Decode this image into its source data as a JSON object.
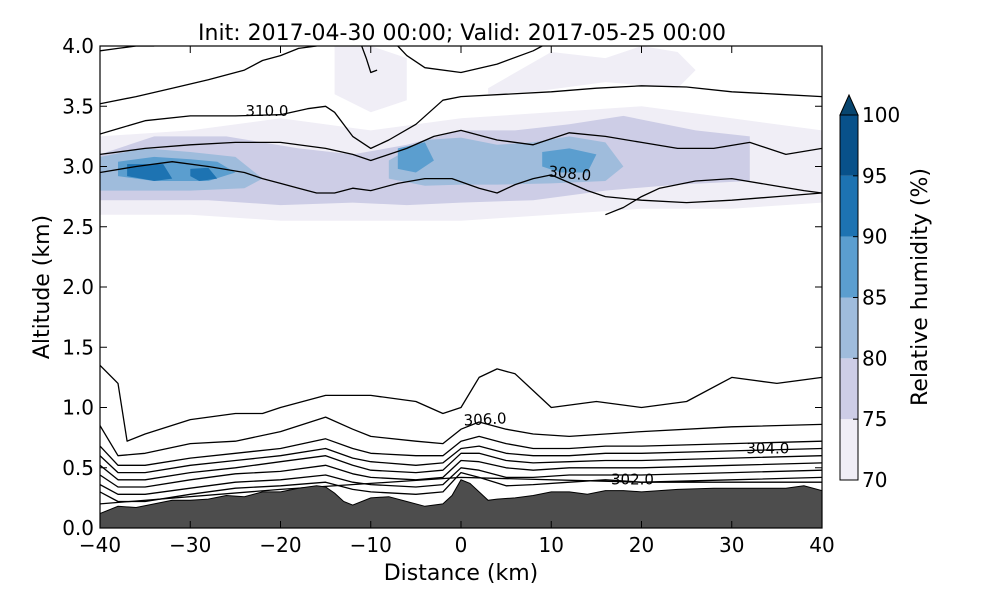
{
  "chart_data": {
    "type": "contour",
    "title": "Init: 2017-04-30 00:00; Valid: 2017-05-25 00:00",
    "xlabel": "Distance (km)",
    "ylabel": "Altitude (km)",
    "xlim": [
      -40,
      40
    ],
    "ylim": [
      0.0,
      4.0
    ],
    "xticks": [
      "−40",
      "−30",
      "−20",
      "−10",
      "0",
      "10",
      "20",
      "30",
      "40"
    ],
    "xtick_values": [
      -40,
      -30,
      -20,
      -10,
      0,
      10,
      20,
      30,
      40
    ],
    "yticks": [
      "0.0",
      "0.5",
      "1.0",
      "1.5",
      "2.0",
      "2.5",
      "3.0",
      "3.5",
      "4.0"
    ],
    "ytick_values": [
      0,
      0.5,
      1.0,
      1.5,
      2.0,
      2.5,
      3.0,
      3.5,
      4.0
    ],
    "colorbar": {
      "label": "Relative humidity (%)",
      "ticks": [
        "70",
        "75",
        "80",
        "85",
        "90",
        "95",
        "100"
      ],
      "levels": [
        70,
        75,
        80,
        85,
        90,
        95,
        100
      ],
      "colors": [
        "#f0eef6",
        "#cdcde6",
        "#9fbcdc",
        "#5b9ecf",
        "#1d73b2",
        "#08518a"
      ],
      "extend_color": "#08456f"
    },
    "terrain": {
      "color": "#4d4d4d",
      "x": [
        -40,
        -38,
        -36,
        -34,
        -32,
        -30,
        -28,
        -26,
        -24,
        -22,
        -20,
        -18,
        -16,
        -15,
        -14,
        -13,
        -12,
        -10,
        -8,
        -6,
        -4,
        -2,
        -1,
        0,
        1,
        2,
        3,
        4,
        6,
        8,
        10,
        12,
        14,
        16,
        18,
        20,
        24,
        28,
        32,
        36,
        38,
        40
      ],
      "y": [
        0.12,
        0.18,
        0.17,
        0.2,
        0.23,
        0.23,
        0.24,
        0.27,
        0.26,
        0.3,
        0.3,
        0.33,
        0.35,
        0.34,
        0.29,
        0.22,
        0.19,
        0.25,
        0.26,
        0.22,
        0.18,
        0.2,
        0.27,
        0.4,
        0.37,
        0.3,
        0.23,
        0.24,
        0.25,
        0.27,
        0.3,
        0.3,
        0.28,
        0.31,
        0.31,
        0.3,
        0.32,
        0.33,
        0.33,
        0.33,
        0.35,
        0.31
      ]
    },
    "rh_regions": [
      {
        "level": 70,
        "x": [
          -40,
          -30,
          -20,
          -10,
          0,
          10,
          20,
          30,
          40,
          40,
          30,
          20,
          10,
          0,
          -10,
          -20,
          -30,
          -40
        ],
        "y": [
          3.25,
          3.3,
          3.4,
          3.3,
          3.4,
          3.45,
          3.5,
          3.4,
          3.3,
          2.7,
          2.65,
          2.65,
          2.6,
          2.55,
          2.55,
          2.55,
          2.6,
          2.6
        ]
      },
      {
        "level": 70,
        "x": [
          -14,
          -10,
          -6,
          -6,
          -10,
          -14
        ],
        "y": [
          4.0,
          4.0,
          3.9,
          3.55,
          3.45,
          3.6
        ]
      },
      {
        "level": 70,
        "x": [
          3,
          10,
          16,
          20,
          24,
          26,
          24,
          16,
          8,
          3
        ],
        "y": [
          3.65,
          3.95,
          3.9,
          4.0,
          3.95,
          3.8,
          3.65,
          3.7,
          3.62,
          3.6
        ]
      },
      {
        "level": 75,
        "x": [
          -40,
          -34,
          -26,
          -18,
          -12,
          -6,
          0,
          6,
          12,
          18,
          26,
          32,
          32,
          24,
          16,
          8,
          0,
          -6,
          -12,
          -20,
          -28,
          -36,
          -40
        ],
        "y": [
          3.1,
          3.25,
          3.25,
          3.15,
          3.1,
          3.18,
          3.3,
          3.3,
          3.35,
          3.42,
          3.3,
          3.25,
          2.88,
          2.85,
          2.8,
          2.72,
          2.7,
          2.68,
          2.7,
          2.68,
          2.72,
          2.72,
          2.72
        ]
      },
      {
        "level": 80,
        "x": [
          -40,
          -35,
          -30,
          -25,
          -22,
          -24,
          -30,
          -36,
          -40
        ],
        "y": [
          3.08,
          3.15,
          3.12,
          3.08,
          2.9,
          2.82,
          2.8,
          2.8,
          2.8
        ]
      },
      {
        "level": 80,
        "x": [
          -8,
          -4,
          0,
          4,
          8,
          12,
          16,
          18,
          16,
          10,
          4,
          0,
          -4,
          -8
        ],
        "y": [
          3.05,
          3.22,
          3.24,
          3.18,
          3.2,
          3.25,
          3.2,
          3.0,
          2.88,
          2.86,
          2.85,
          2.85,
          2.84,
          2.9
        ]
      },
      {
        "level": 85,
        "x": [
          -38,
          -34,
          -30,
          -27,
          -25,
          -28,
          -34,
          -38
        ],
        "y": [
          3.04,
          3.08,
          3.06,
          3.04,
          2.95,
          2.88,
          2.88,
          2.92
        ]
      },
      {
        "level": 85,
        "x": [
          -7,
          -4,
          -3,
          -5,
          -7
        ],
        "y": [
          3.15,
          3.2,
          3.05,
          2.95,
          2.98
        ]
      },
      {
        "level": 85,
        "x": [
          9,
          12,
          15,
          14,
          11,
          9
        ],
        "y": [
          3.12,
          3.15,
          3.1,
          2.95,
          2.95,
          3.0
        ]
      },
      {
        "level": 90,
        "x": [
          -37,
          -33,
          -32,
          -34,
          -37
        ],
        "y": [
          3.02,
          3.02,
          2.9,
          2.88,
          2.92
        ]
      },
      {
        "level": 90,
        "x": [
          -30,
          -28,
          -27,
          -29,
          -30
        ],
        "y": [
          2.98,
          2.99,
          2.9,
          2.88,
          2.92
        ]
      }
    ],
    "theta_labels": [
      {
        "text": "310.0",
        "x": -21.5,
        "y": 3.42,
        "rotation": 0
      },
      {
        "text": "308.0",
        "x": 12,
        "y": 2.9,
        "rotation": 6
      },
      {
        "text": "306.0",
        "x": 2.7,
        "y": 0.86,
        "rotation": -3
      },
      {
        "text": "304.0",
        "x": 34,
        "y": 0.62,
        "rotation": 0
      },
      {
        "text": "302.0",
        "x": 19,
        "y": 0.36,
        "rotation": 0
      }
    ],
    "theta_lines": [
      {
        "x": [
          -40,
          -20,
          0,
          20,
          40
        ],
        "y": [
          0.2,
          0.32,
          0.42,
          0.38,
          0.38
        ]
      },
      {
        "x": [
          -40,
          -38,
          -35,
          -30,
          -25,
          -20,
          -15,
          -12,
          -10,
          -5,
          -2,
          0,
          2,
          5,
          8,
          12,
          16,
          20,
          30,
          40
        ],
        "y": [
          0.3,
          0.22,
          0.22,
          0.28,
          0.33,
          0.35,
          0.38,
          0.32,
          0.3,
          0.28,
          0.3,
          0.46,
          0.42,
          0.35,
          0.36,
          0.38,
          0.4,
          0.38,
          0.4,
          0.42
        ]
      },
      {
        "x": [
          -40,
          -38,
          -35,
          -30,
          -25,
          -20,
          -15,
          -12,
          -10,
          -5,
          -2,
          0,
          2,
          5,
          8,
          12,
          16,
          20,
          30,
          40
        ],
        "y": [
          0.36,
          0.28,
          0.28,
          0.33,
          0.38,
          0.4,
          0.44,
          0.38,
          0.36,
          0.34,
          0.36,
          0.5,
          0.48,
          0.42,
          0.42,
          0.44,
          0.44,
          0.44,
          0.46,
          0.48
        ]
      },
      {
        "x": [
          -40,
          -38,
          -35,
          -30,
          -25,
          -20,
          -15,
          -12,
          -10,
          -5,
          -2,
          0,
          2,
          5,
          8,
          12,
          16,
          20,
          30,
          40
        ],
        "y": [
          0.44,
          0.34,
          0.34,
          0.4,
          0.45,
          0.47,
          0.52,
          0.45,
          0.42,
          0.4,
          0.42,
          0.56,
          0.55,
          0.5,
          0.48,
          0.5,
          0.5,
          0.5,
          0.52,
          0.54
        ]
      },
      {
        "x": [
          -40,
          -38,
          -35,
          -30,
          -25,
          -20,
          -15,
          -12,
          -10,
          -5,
          -2,
          0,
          2,
          5,
          8,
          12,
          16,
          20,
          30,
          40
        ],
        "y": [
          0.52,
          0.4,
          0.4,
          0.46,
          0.5,
          0.55,
          0.6,
          0.52,
          0.48,
          0.46,
          0.48,
          0.62,
          0.62,
          0.56,
          0.54,
          0.55,
          0.56,
          0.56,
          0.58,
          0.6
        ]
      },
      {
        "x": [
          -40,
          -38,
          -35,
          -30,
          -25,
          -20,
          -15,
          -12,
          -10,
          -5,
          -2,
          0,
          2,
          5,
          8,
          12,
          16,
          20,
          30,
          40
        ],
        "y": [
          0.6,
          0.46,
          0.46,
          0.52,
          0.56,
          0.6,
          0.66,
          0.58,
          0.55,
          0.52,
          0.54,
          0.66,
          0.68,
          0.62,
          0.6,
          0.6,
          0.62,
          0.62,
          0.64,
          0.66
        ]
      },
      {
        "x": [
          -40,
          -38,
          -35,
          -30,
          -25,
          -20,
          -15,
          -12,
          -10,
          -5,
          -2,
          0,
          2,
          5,
          8,
          12,
          16,
          20,
          30,
          40
        ],
        "y": [
          0.68,
          0.52,
          0.52,
          0.58,
          0.62,
          0.66,
          0.74,
          0.66,
          0.62,
          0.6,
          0.6,
          0.72,
          0.76,
          0.7,
          0.66,
          0.66,
          0.68,
          0.68,
          0.7,
          0.72
        ]
      },
      {
        "x": [
          -40,
          -38,
          -35,
          -30,
          -25,
          -20,
          -15,
          -12,
          -10,
          -5,
          -2,
          0,
          2,
          5,
          8,
          12,
          16,
          20,
          30,
          40
        ],
        "y": [
          0.85,
          0.6,
          0.62,
          0.7,
          0.72,
          0.8,
          0.92,
          0.82,
          0.76,
          0.72,
          0.7,
          0.82,
          0.88,
          0.82,
          0.78,
          0.76,
          0.78,
          0.8,
          0.84,
          0.86
        ]
      },
      {
        "x": [
          -40,
          -38,
          -37,
          -35,
          -30,
          -25,
          -22,
          -20,
          -15,
          -10,
          -5,
          -2,
          0,
          2,
          4,
          6,
          10,
          15,
          20,
          25,
          30,
          35,
          40
        ],
        "y": [
          1.35,
          1.2,
          0.72,
          0.78,
          0.9,
          0.95,
          0.95,
          1.0,
          1.1,
          1.1,
          1.05,
          0.95,
          1.0,
          1.25,
          1.32,
          1.28,
          1.0,
          1.05,
          1.0,
          1.05,
          1.25,
          1.2,
          1.25
        ]
      },
      {
        "x": [
          -40,
          -36,
          -32,
          -28,
          -24,
          -22,
          -20,
          -18,
          -16,
          -14,
          -12,
          -10,
          -7,
          -4,
          -1,
          2,
          4,
          6,
          8,
          10,
          14,
          16,
          20,
          25,
          30,
          35,
          40
        ],
        "y": [
          2.95,
          3.0,
          3.04,
          3.0,
          2.95,
          2.9,
          2.86,
          2.82,
          2.78,
          2.78,
          2.82,
          2.8,
          2.86,
          2.9,
          2.9,
          2.82,
          2.78,
          2.85,
          2.9,
          2.93,
          2.8,
          2.75,
          2.72,
          2.7,
          2.72,
          2.75,
          2.78
        ]
      },
      {
        "x": [
          16,
          18,
          20,
          22,
          26,
          30,
          34,
          38,
          40
        ],
        "y": [
          2.6,
          2.66,
          2.75,
          2.82,
          2.88,
          2.9,
          2.85,
          2.8,
          2.78
        ]
      },
      {
        "x": [
          -40,
          -35,
          -30,
          -25,
          -20,
          -15,
          -12,
          -10,
          -6,
          -3,
          0,
          4,
          8,
          12,
          16,
          20,
          24,
          28,
          32,
          36,
          40
        ],
        "y": [
          3.1,
          3.15,
          3.18,
          3.2,
          3.2,
          3.15,
          3.1,
          3.05,
          3.15,
          3.25,
          3.3,
          3.22,
          3.18,
          3.28,
          3.25,
          3.2,
          3.15,
          3.15,
          3.2,
          3.1,
          3.15
        ]
      },
      {
        "x": [
          -40,
          -35,
          -30,
          -25,
          -20,
          -17,
          -15,
          -14,
          -12,
          -10,
          -8,
          -5,
          -2,
          0,
          5,
          10,
          15,
          20,
          25,
          30,
          35,
          40
        ],
        "y": [
          3.27,
          3.38,
          3.42,
          3.42,
          3.43,
          3.48,
          3.5,
          3.45,
          3.25,
          3.15,
          3.22,
          3.35,
          3.55,
          3.58,
          3.6,
          3.62,
          3.65,
          3.67,
          3.66,
          3.62,
          3.6,
          3.58
        ]
      },
      {
        "x": [
          -40,
          -36,
          -32,
          -28,
          -24,
          -22,
          -20,
          -18,
          -16
        ],
        "y": [
          3.52,
          3.58,
          3.65,
          3.72,
          3.8,
          3.88,
          3.92,
          3.98,
          4.0
        ]
      },
      {
        "x": [
          -40,
          -38,
          -36,
          -34
        ],
        "y": [
          3.96,
          3.98,
          4.0,
          4.0
        ]
      },
      {
        "x": [
          -7,
          -6,
          -4,
          0,
          4,
          8,
          9
        ],
        "y": [
          4.0,
          3.92,
          3.82,
          3.78,
          3.85,
          3.96,
          4.0
        ]
      },
      {
        "x": [
          -11,
          -10.5,
          -10,
          -9.3
        ],
        "y": [
          4.0,
          3.9,
          3.78,
          3.8
        ]
      }
    ]
  }
}
